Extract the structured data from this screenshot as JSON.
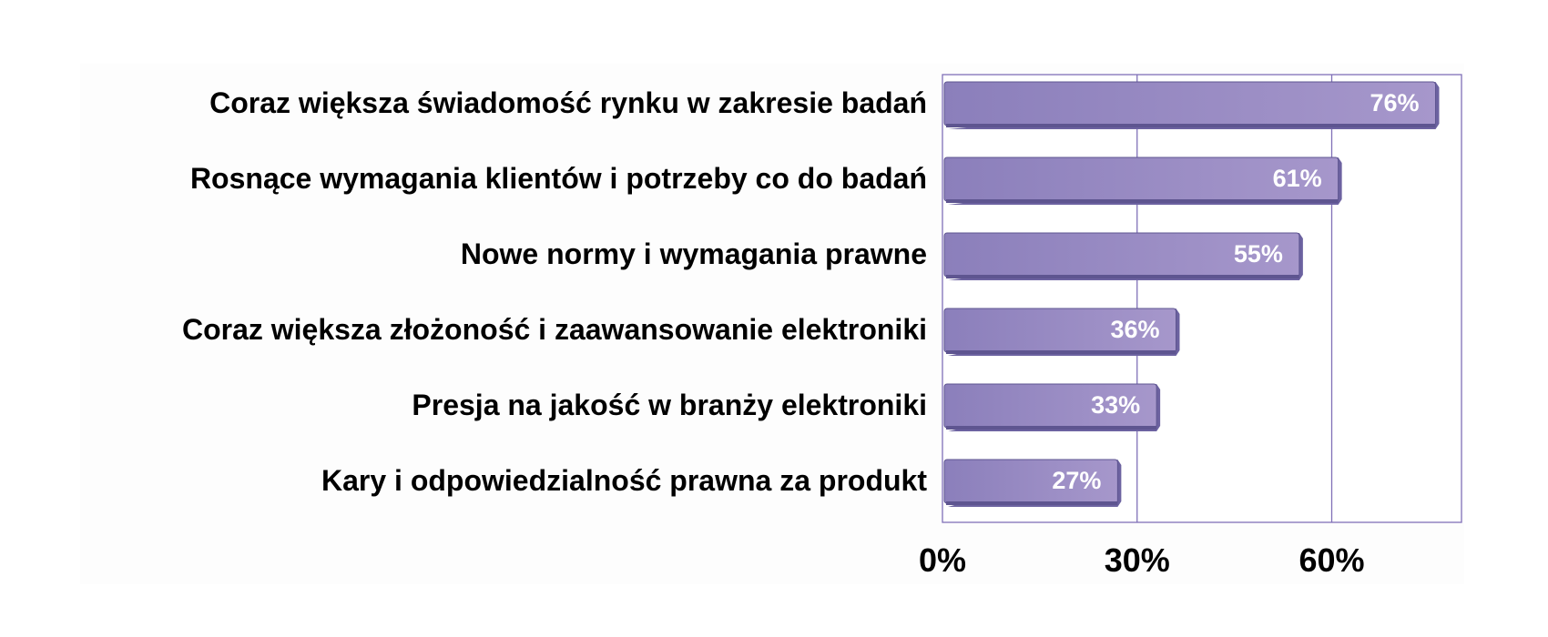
{
  "chart_data": {
    "type": "bar",
    "orientation": "horizontal",
    "categories": [
      "Coraz większa świadomość rynku w zakresie badań",
      "Rosnące wymagania klientów i potrzeby co do badań",
      "Nowe normy i wymagania prawne",
      "Coraz większa złożoność i zaawansowanie elektroniki",
      "Presja na jakość w branży elektroniki",
      "Kary i odpowiedzialność prawna za produkt"
    ],
    "values": [
      76,
      61,
      55,
      36,
      33,
      27
    ],
    "data_labels": [
      "76%",
      "61%",
      "55%",
      "36%",
      "33%",
      "27%"
    ],
    "xlim": [
      0,
      80
    ],
    "x_ticks": [
      0,
      30,
      60
    ],
    "x_tick_labels": [
      "0%",
      "30%",
      "60%"
    ],
    "grid": true,
    "legend": "none",
    "colors": {
      "bar_left": "#8b7fbb",
      "bar_right": "#a697cb",
      "bar_edge": "#5e5590",
      "bar_shadow": "#6c62a0",
      "frame": "#8070b8",
      "grid": "#8070b8",
      "plot_bg": "#ffffff",
      "panel_bg": "#fdfdfd",
      "label_text": "#000000",
      "value_text": "#ffffff"
    }
  }
}
